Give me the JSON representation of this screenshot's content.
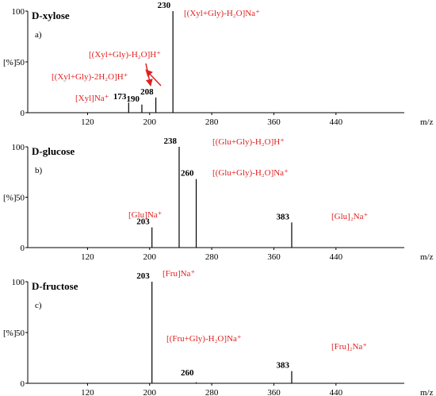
{
  "chart_data": [
    {
      "type": "stem",
      "title": "D-xylose",
      "subtitle": "a)",
      "ylabel": "[%]",
      "xlabel": "m/z",
      "color": "#000000",
      "annotation_color": "#e02020",
      "x": [
        173,
        190,
        208,
        230
      ],
      "values": [
        10,
        8,
        15,
        100
      ],
      "xlim": [
        43,
        528
      ],
      "xticks": [
        120,
        200,
        280,
        360,
        440
      ],
      "ylim": [
        0,
        100
      ],
      "yticks": [
        0,
        50,
        100
      ],
      "annotations": [
        "[(Xyl+Gly)-H₂O]Na⁺",
        "[(Xyl+Gly)-H₂O]H⁺",
        "[(Xyl+Gly)-2H₂O]H⁺",
        "[Xyl]Na⁺"
      ]
    },
    {
      "type": "stem",
      "title": "D-glucose",
      "subtitle": "b)",
      "ylabel": "[%]",
      "xlabel": "m/z",
      "color": "#000000",
      "annotation_color": "#e02020",
      "x": [
        203,
        238,
        260,
        383
      ],
      "values": [
        20,
        100,
        68,
        25
      ],
      "xlim": [
        43,
        528
      ],
      "xticks": [
        120,
        200,
        280,
        360,
        440
      ],
      "ylim": [
        0,
        100
      ],
      "yticks": [
        0,
        50,
        100
      ],
      "annotations": [
        "[(Glu+Gly)-H₂O]H⁺",
        "[(Glu+Gly)-H₂O]Na⁺",
        "[Glu]Na⁺",
        "[Glu]₂Na⁺"
      ]
    },
    {
      "type": "stem",
      "title": "D-fructose",
      "subtitle": "c)",
      "ylabel": "[%]",
      "xlabel": "m/z",
      "color": "#000000",
      "annotation_color": "#e02020",
      "x": [
        203,
        260,
        383
      ],
      "values": [
        100,
        1,
        12
      ],
      "xlim": [
        43,
        528
      ],
      "xticks": [
        120,
        200,
        280,
        360,
        440
      ],
      "ylim": [
        0,
        100
      ],
      "yticks": [
        0,
        50,
        100
      ],
      "annotations": [
        "[Fru]Na⁺",
        "[(Fru+Gly)-H₂O]Na⁺",
        "[Fru]₂Na⁺"
      ]
    }
  ]
}
